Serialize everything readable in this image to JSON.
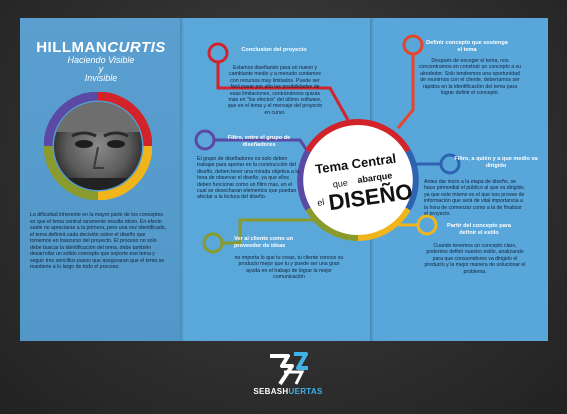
{
  "brochure": {
    "title_a": "HILLMAN",
    "title_b": "CURTIS",
    "subtitle_a": "Haciendo Visible",
    "subtitle_b": "y",
    "subtitle_c": "Invisible",
    "intro_text": "La dificultad inherente en la mayor parte de los conceptos es que el tema central raramente resulta obvio. En efecto suele no apreciarse a la primera, pero una vez identificado, el tema definirá cada decisión sobre el diseño que tomemos en trascurso del proyecto. El proceso no solo debe buscar la identificación del tema, debe también desarrollar un sólido concepto que soporte ese tema y seguir tres sencillos pasos que aseguraran que el tema se mantiene a lo largo de todo el proceso.",
    "center_title_a": "Tema Central",
    "center_title_b": "que",
    "center_title_c": "abarque",
    "center_title_d": "el",
    "center_title_e": "DISEÑO",
    "conclusion": {
      "heading": "Conclusion del proyecto",
      "text": "Estamos diseñando para un nuevo y cambiante medio y a menudo contamos con recursos muy limitados. Puede ser fácil pasar por alto las posibilidades de esas limitaciones, centrándonos quizás más en \"los efectos\" del último software, que en el tema y el mensaje del proyecto en curso."
    },
    "filtro": {
      "heading": "Filtro, entre el grupo de diseñadores",
      "text": "El grupo de diseñadores no solo deben trabajar para aportar en la construcción del diseño, deben tener una mirada objetiva a la hora de observar el diseño, ya que ellos deben funcionar como un filtro mas, en el cual se desecharan elementos que puedan afectar a la lectura del diseño."
    },
    "ver_cliente": {
      "heading": "Ver al cliente como un proveedor de ideas",
      "text": "no importa lo que tu creas, tu cliente conoce su producto mejor que tu y puede ser una gran ayuda en el trabajo de lograr la mejor comunicación"
    },
    "definir": {
      "heading": "Definir concepto que sostenga el tema",
      "text": "Después de escoger el tema, nos concentramos en construir un concepto a su alrededor. Solo tendremos una oportunidad de reunirnos con el cliente, deberíamos ser rápidos en la identificación del tema para lograr definir el concepto."
    },
    "filtro_quien": {
      "heading": "Filtro, a quién y a que medio va dirigido",
      "text": "Antes dar inicio a la etapa de diseño, se hace primordial el público al que va dirigido, ya que este mismo es el que nos provee de información que será de vital importancia a la hora de comenzar como a la de finalizar el proyecto."
    },
    "partir": {
      "heading": "Partir del concepto para definir el estilo",
      "text": "Cuando tenemos un concepto claro, podemos definir nuestro estilo, analizando para que consumidores va dirigido el producto y la mejor manera de solucionar el problema."
    },
    "brand_a": "SEBASH",
    "brand_b": "UERTAS"
  },
  "colors": {
    "red": "#d2232a",
    "purple": "#5b4aa5",
    "olive": "#8a9a2c",
    "orange_red": "#e5452b",
    "blue": "#2d63b0",
    "yellow": "#f1b51c",
    "panel": "#5aa7da"
  }
}
